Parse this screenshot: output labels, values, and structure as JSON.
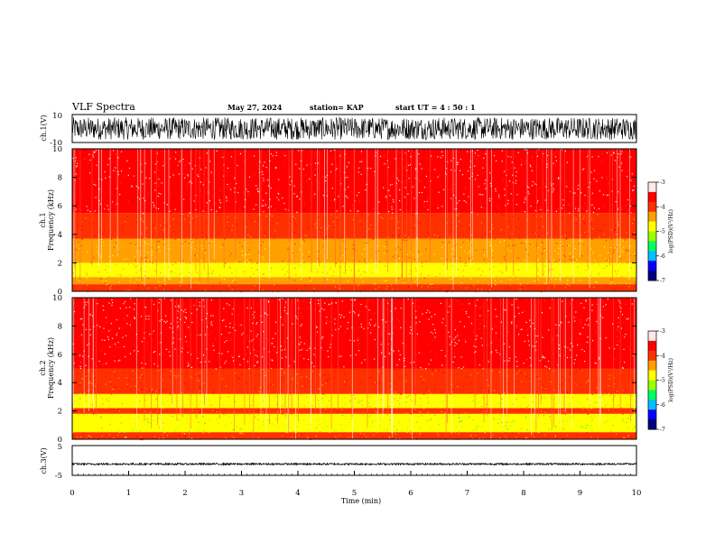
{
  "header": {
    "title": "VLF Spectra",
    "date": "May 27, 2024",
    "station": "station= KAP",
    "start": "start  UT =   4 : 50 : 1"
  },
  "chart_data": [
    {
      "type": "line",
      "id": "ch1-waveform",
      "ylabel": "ch.1(V)",
      "ylim": [
        -10,
        10
      ],
      "yticks": [
        "10",
        "-10"
      ],
      "xlim": [
        0,
        10
      ],
      "description_values": {
        "amplitude_range_V": [
          -8,
          8
        ]
      }
    },
    {
      "type": "heatmap",
      "id": "ch1-spectrogram",
      "ylabel": "ch.1",
      "ylabel2": "Frequency (kHz)",
      "ylim": [
        0,
        10
      ],
      "yticks": [
        "0",
        "2",
        "4",
        "6",
        "8",
        "10"
      ],
      "xlim": [
        0,
        10
      ],
      "bands_kHz": [
        {
          "from": 0,
          "to": 0.5,
          "level": -4.0
        },
        {
          "from": 0.5,
          "to": 1.0,
          "level": -4.6
        },
        {
          "from": 1.0,
          "to": 2.0,
          "level": -4.7
        },
        {
          "from": 2.0,
          "to": 2.5,
          "level": -4.4
        },
        {
          "from": 2.5,
          "to": 3.2,
          "level": -4.5
        },
        {
          "from": 3.2,
          "to": 3.7,
          "level": -4.3
        },
        {
          "from": 3.7,
          "to": 5.5,
          "level": -3.9
        },
        {
          "from": 5.5,
          "to": 10,
          "level": -3.5
        }
      ]
    },
    {
      "type": "heatmap",
      "id": "ch2-spectrogram",
      "ylabel": "ch.2",
      "ylabel2": "Frequency (kHz)",
      "ylim": [
        0,
        10
      ],
      "yticks": [
        "0",
        "2",
        "4",
        "6",
        "8",
        "10"
      ],
      "xlim": [
        0,
        10
      ],
      "bands_kHz": [
        {
          "from": 0,
          "to": 0.5,
          "level": -4.2
        },
        {
          "from": 0.5,
          "to": 1.8,
          "level": -5.0
        },
        {
          "from": 1.8,
          "to": 2.2,
          "level": -4.1
        },
        {
          "from": 2.2,
          "to": 3.2,
          "level": -4.8
        },
        {
          "from": 3.2,
          "to": 5.0,
          "level": -3.9
        },
        {
          "from": 5.0,
          "to": 10,
          "level": -3.5
        }
      ]
    },
    {
      "type": "line",
      "id": "ch3-waveform",
      "ylabel": "ch.3(V)",
      "ylim": [
        -5,
        5
      ],
      "yticks": [
        "5",
        "0",
        "-5"
      ],
      "xlim": [
        0,
        10
      ],
      "xlabel": "Time (min)",
      "xticks": [
        "0",
        "1",
        "2",
        "3",
        "4",
        "5",
        "6",
        "7",
        "8",
        "9",
        "10"
      ],
      "description_values": {
        "mean_V": -1.2,
        "amplitude_range_V": [
          -1.5,
          -0.9
        ]
      }
    }
  ],
  "colorbar": {
    "label": "log(PSD)(V²/Hz)",
    "ticks": [
      "-3",
      "-4",
      "-5",
      "-6",
      "-7"
    ],
    "range": [
      -7,
      -3
    ],
    "colors": [
      "#000080",
      "#0000ff",
      "#00c0ff",
      "#00ff60",
      "#9cff00",
      "#ffff00",
      "#ffa000",
      "#ff3000",
      "#ff0000",
      "#ffe8e8"
    ]
  }
}
